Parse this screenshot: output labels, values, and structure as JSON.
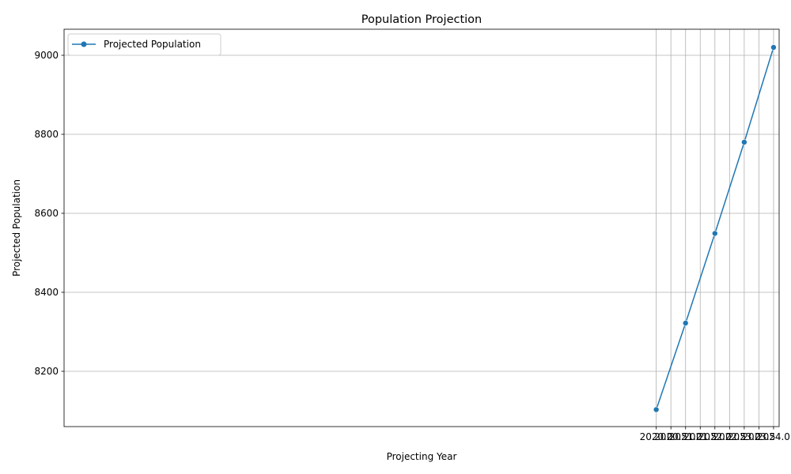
{
  "chart_data": {
    "type": "line",
    "title": "Population Projection",
    "xlabel": "Projecting Year",
    "ylabel": "Projected Population",
    "xlim": [
      1999.81,
      2024.19
    ],
    "ylim": [
      8060,
      9066
    ],
    "xticks": [
      2020.0,
      2020.5,
      2021.0,
      2021.5,
      2022.0,
      2022.5,
      2023.0,
      2023.5,
      2024.0
    ],
    "xtick_labels": [
      "2020.0",
      "2020.5",
      "2021.0",
      "2021.5",
      "2022.0",
      "2022.5",
      "2023.0",
      "2023.5",
      "2024.0"
    ],
    "yticks": [
      8200,
      8400,
      8600,
      8800,
      9000
    ],
    "ytick_labels": [
      "8200",
      "8400",
      "8600",
      "8800",
      "9000"
    ],
    "grid": true,
    "legend_position": "top-left",
    "series": [
      {
        "name": "Projected Population",
        "color": "#1f77b4",
        "marker": "circle",
        "x": [
          2020,
          2021,
          2022,
          2023,
          2024
        ],
        "y": [
          8103,
          8322,
          8549,
          8780,
          9020
        ]
      }
    ]
  }
}
